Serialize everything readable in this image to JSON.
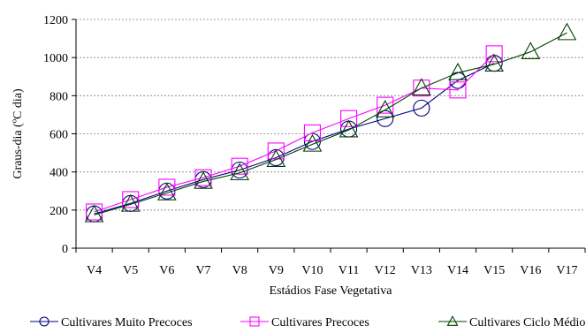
{
  "chart_data": {
    "type": "line",
    "title": "",
    "xlabel": "Estádios Fase Vegetativa",
    "ylabel": "Graus-dia (ºC dia)",
    "categories": [
      "V4",
      "V5",
      "V6",
      "V7",
      "V8",
      "V9",
      "V10",
      "V11",
      "V12",
      "V13",
      "V14",
      "V15",
      "V16",
      "V17"
    ],
    "ylim": [
      0,
      1200
    ],
    "yticks": [
      0,
      200,
      400,
      600,
      800,
      1000,
      1200
    ],
    "grid": "horizontal-dashed",
    "legend_position": "bottom",
    "series": [
      {
        "name": "Cultivares Muito Precoces",
        "marker": "circle",
        "color": "#000080",
        "values": [
          180,
          235,
          300,
          360,
          410,
          475,
          560,
          625,
          680,
          735,
          880,
          970,
          null,
          null
        ]
      },
      {
        "name": "Cultivares Precoces",
        "marker": "square",
        "color": "#ff00ff",
        "values": [
          190,
          255,
          320,
          370,
          430,
          510,
          605,
          680,
          750,
          840,
          830,
          1020,
          null,
          null
        ]
      },
      {
        "name": "Cultivares Ciclo Médio",
        "marker": "triangle",
        "color": "#004000",
        "values": [
          175,
          230,
          290,
          350,
          395,
          465,
          545,
          620,
          725,
          840,
          920,
          965,
          1030,
          1130
        ]
      }
    ]
  }
}
